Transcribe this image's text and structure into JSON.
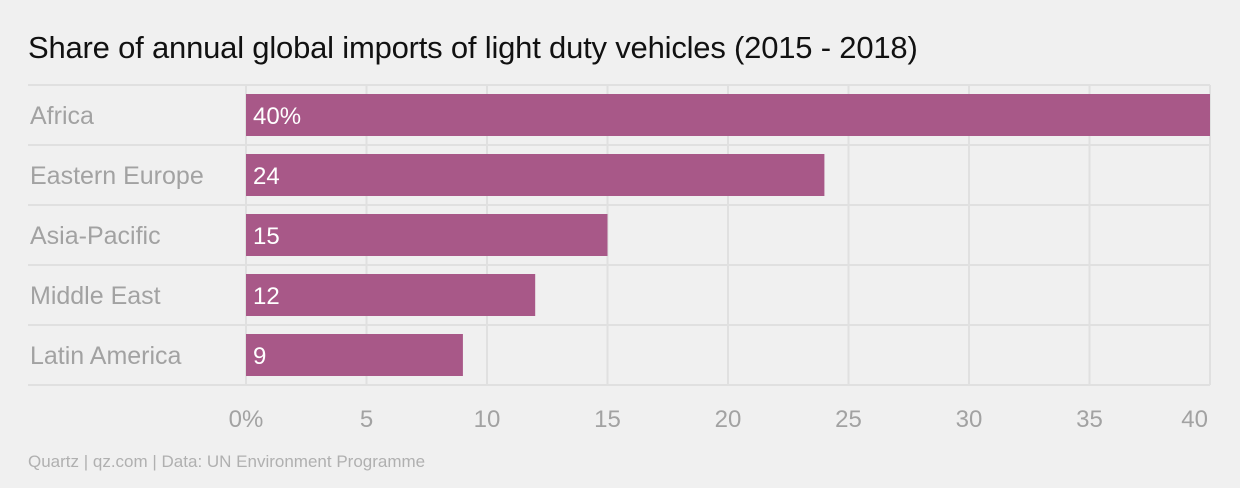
{
  "title": "Share of annual global imports of light duty vehicles (2015 - 2018)",
  "source": "Quartz | qz.com | Data: UN Environment Programme",
  "colors": {
    "bar": "#a85888",
    "background": "#f0f0f0",
    "grid": "#e0e0e0",
    "label": "#a2a2a2"
  },
  "chart_data": {
    "type": "bar",
    "orientation": "horizontal",
    "categories": [
      "Africa",
      "Eastern Europe",
      "Asia-Pacific",
      "Middle East",
      "Latin America"
    ],
    "values": [
      40,
      24,
      15,
      12,
      9
    ],
    "data_labels": [
      "40%",
      "24",
      "15",
      "12",
      "9"
    ],
    "xlim": [
      0,
      40
    ],
    "xticks": [
      0,
      5,
      10,
      15,
      20,
      25,
      30,
      35,
      40
    ],
    "xtick_labels": [
      "0%",
      "5",
      "10",
      "15",
      "20",
      "25",
      "30",
      "35",
      "40"
    ],
    "grid": true
  }
}
